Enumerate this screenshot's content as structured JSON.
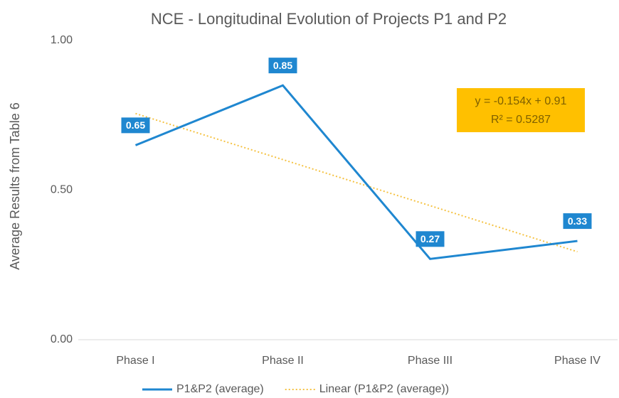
{
  "chart_data": {
    "type": "line",
    "title": "NCE - Longitudinal Evolution of Projects P1 and P2",
    "y_label": "Average Results from Table 6",
    "categories": [
      "Phase I",
      "Phase II",
      "Phase III",
      "Phase IV"
    ],
    "series": [
      {
        "name": "P1&P2 (average)",
        "color": "#1f87d0",
        "values": [
          0.65,
          0.85,
          0.27,
          0.33
        ],
        "data_labels": true
      },
      {
        "name": "Linear (P1&P2 (average))",
        "color": "#f5c242",
        "values": [
          0.756,
          0.602,
          0.448,
          0.294
        ],
        "dotted": true
      }
    ],
    "ylim": [
      0,
      1
    ],
    "yticks": [
      {
        "value": 0,
        "label": "0.00"
      },
      {
        "value": 0.5,
        "label": "0.50"
      },
      {
        "value": 1,
        "label": "1.00"
      }
    ],
    "annotation": {
      "lines": [
        "y = -0.154x + 0.91",
        "R² = 0.5287"
      ],
      "color": "#ffc000"
    },
    "legend": "bottom"
  }
}
